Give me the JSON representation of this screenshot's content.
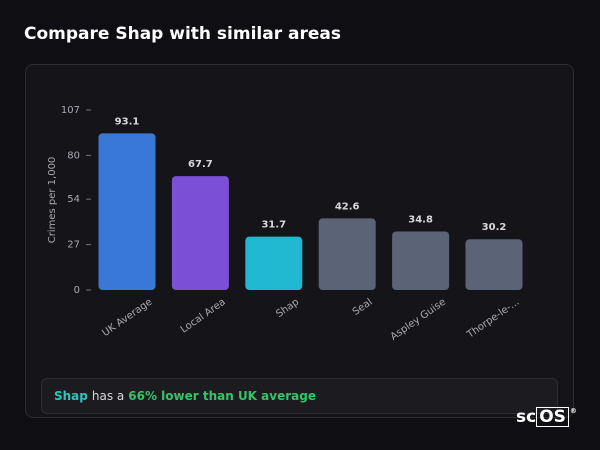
{
  "title": "Compare Shap with similar areas",
  "chart_data": {
    "type": "bar",
    "y_label": "Crimes per 1,000",
    "categories": [
      "UK Average",
      "Local Area",
      "Shap",
      "Seal",
      "Aspley Guise",
      "Thorpe-le-..."
    ],
    "values": [
      93.1,
      67.7,
      31.7,
      42.6,
      34.8,
      30.2
    ],
    "colors": [
      "#3a78d8",
      "#7c50d6",
      "#1fb8d0",
      "#5b6377",
      "#5b6377",
      "#5b6377"
    ],
    "ylim": [
      0,
      107
    ],
    "yticks": [
      0,
      27,
      54,
      80,
      107
    ]
  },
  "insight": {
    "area": "Shap",
    "text": "has a",
    "highlight": "66% lower than UK average"
  },
  "logo": {
    "prefix": "sc",
    "box": "OS",
    "mark": "®"
  }
}
